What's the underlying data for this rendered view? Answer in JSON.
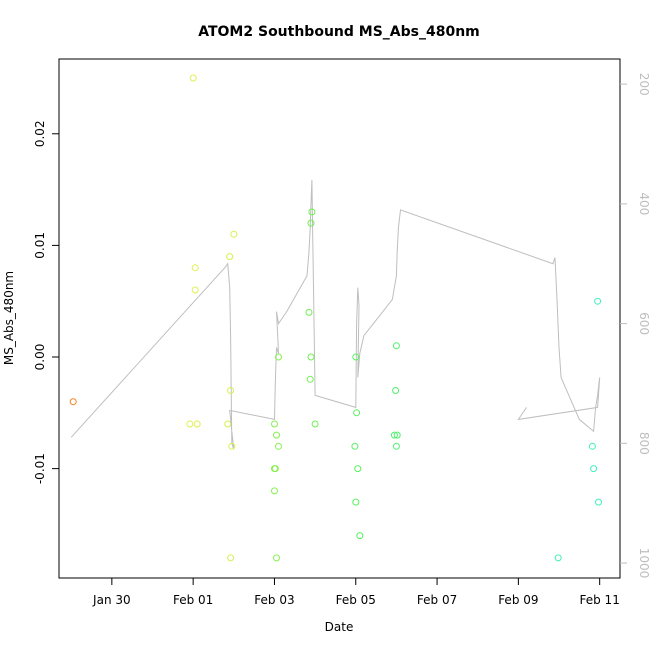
{
  "chart_data": {
    "type": "scatter",
    "title": "ATOM2 Southbound MS_Abs_480nm",
    "xlabel": "Date",
    "ylabel": "MS_Abs_480nm",
    "x_ticks": [
      {
        "label": "Jan 30",
        "value": 1.0
      },
      {
        "label": "Feb 01",
        "value": 3.0
      },
      {
        "label": "Feb 03",
        "value": 5.0
      },
      {
        "label": "Feb 05",
        "value": 7.0
      },
      {
        "label": "Feb 07",
        "value": 9.0
      },
      {
        "label": "Feb 09",
        "value": 11.0
      },
      {
        "label": "Feb 11",
        "value": 13.0
      }
    ],
    "xlim": [
      -0.3,
      13.5
    ],
    "ylim": [
      -0.0198,
      0.0267
    ],
    "y_ticks": [
      {
        "label": "-0.01",
        "value": -0.01
      },
      {
        "label": "0.00",
        "value": 0.0
      },
      {
        "label": "0.01",
        "value": 0.01
      },
      {
        "label": "0.02",
        "value": 0.02
      }
    ],
    "y2_ticks": [
      "200",
      "400",
      "600",
      "800",
      "1000"
    ],
    "y2_tick_values": [
      200,
      400,
      600,
      800,
      1000
    ],
    "y2_range": [
      1025,
      158
    ],
    "y2_color": "#bebebe",
    "point_color_scale": [
      "#ff8c00",
      "#ffff66",
      "#66ff66",
      "#33ffcc"
    ],
    "points": [
      {
        "x": 0.05,
        "y": -0.004,
        "color": "#f08020"
      },
      {
        "x": 2.92,
        "y": -0.006,
        "color": "#e0f050"
      },
      {
        "x": 3.0,
        "y": 0.025,
        "color": "#e0f050"
      },
      {
        "x": 3.05,
        "y": 0.008,
        "color": "#e0f050"
      },
      {
        "x": 3.05,
        "y": 0.006,
        "color": "#e0f050"
      },
      {
        "x": 3.1,
        "y": -0.006,
        "color": "#e0f050"
      },
      {
        "x": 3.85,
        "y": -0.006,
        "color": "#d8f050"
      },
      {
        "x": 3.9,
        "y": 0.009,
        "color": "#d8f050"
      },
      {
        "x": 3.92,
        "y": -0.003,
        "color": "#d8f050"
      },
      {
        "x": 3.95,
        "y": -0.008,
        "color": "#d8f050"
      },
      {
        "x": 4.0,
        "y": 0.011,
        "color": "#d8f050"
      },
      {
        "x": 3.92,
        "y": -0.018,
        "color": "#d8f050"
      },
      {
        "x": 5.0,
        "y": -0.006,
        "color": "#88f050"
      },
      {
        "x": 5.02,
        "y": -0.01,
        "color": "#88f050"
      },
      {
        "x": 5.0,
        "y": -0.01,
        "color": "#88f050"
      },
      {
        "x": 5.0,
        "y": -0.012,
        "color": "#88f050"
      },
      {
        "x": 5.05,
        "y": -0.007,
        "color": "#88f050"
      },
      {
        "x": 5.1,
        "y": -0.008,
        "color": "#88f050"
      },
      {
        "x": 5.1,
        "y": 0.0,
        "color": "#88f050"
      },
      {
        "x": 5.05,
        "y": -0.018,
        "color": "#88f050"
      },
      {
        "x": 5.85,
        "y": 0.004,
        "color": "#70f050"
      },
      {
        "x": 5.9,
        "y": 0.012,
        "color": "#70f050"
      },
      {
        "x": 5.92,
        "y": 0.013,
        "color": "#70f050"
      },
      {
        "x": 5.9,
        "y": 0.0,
        "color": "#70f050"
      },
      {
        "x": 5.88,
        "y": -0.002,
        "color": "#70f050"
      },
      {
        "x": 6.0,
        "y": -0.006,
        "color": "#70f050"
      },
      {
        "x": 7.0,
        "y": 0.0,
        "color": "#58f060"
      },
      {
        "x": 7.02,
        "y": -0.005,
        "color": "#58f060"
      },
      {
        "x": 6.98,
        "y": -0.008,
        "color": "#58f060"
      },
      {
        "x": 7.05,
        "y": -0.01,
        "color": "#58f060"
      },
      {
        "x": 7.0,
        "y": -0.013,
        "color": "#58f060"
      },
      {
        "x": 7.1,
        "y": -0.016,
        "color": "#58f060"
      },
      {
        "x": 8.0,
        "y": 0.001,
        "color": "#50f070"
      },
      {
        "x": 7.98,
        "y": -0.003,
        "color": "#50f070"
      },
      {
        "x": 7.95,
        "y": -0.007,
        "color": "#50f070"
      },
      {
        "x": 8.02,
        "y": -0.007,
        "color": "#50f070"
      },
      {
        "x": 8.0,
        "y": -0.008,
        "color": "#50f070"
      },
      {
        "x": 11.98,
        "y": -0.018,
        "color": "#40f0b0"
      },
      {
        "x": 12.82,
        "y": -0.008,
        "color": "#40f0c0"
      },
      {
        "x": 12.85,
        "y": -0.01,
        "color": "#40f0c0"
      },
      {
        "x": 12.95,
        "y": 0.005,
        "color": "#40f0c0"
      },
      {
        "x": 12.97,
        "y": -0.013,
        "color": "#40f0c0"
      }
    ],
    "depth_line": {
      "name": "",
      "color": "#bebebe",
      "x": [
        0.0,
        3.8,
        3.85,
        3.9,
        3.92,
        3.95,
        4.0,
        3.95,
        3.9,
        5.0,
        5.02,
        5.05,
        5.1,
        5.08,
        5.05,
        5.1,
        5.3,
        5.8,
        5.85,
        5.88,
        5.9,
        5.92,
        6.0,
        7.0,
        7.02,
        7.05,
        7.08,
        7.05,
        7.1,
        7.2,
        7.9,
        7.95,
        8.0,
        8.02,
        8.05,
        8.1,
        11.85,
        11.9,
        11.95,
        12.0,
        12.05,
        12.5,
        12.85,
        12.9,
        12.95,
        12.98,
        13.0,
        12.95,
        11.0,
        11.2
      ],
      "y": [
        790,
        505,
        500,
        540,
        620,
        800,
        810,
        780,
        745,
        760,
        700,
        640,
        650,
        620,
        580,
        600,
        580,
        520,
        480,
        440,
        400,
        360,
        720,
        740,
        600,
        540,
        570,
        690,
        650,
        620,
        560,
        540,
        520,
        480,
        440,
        410,
        500,
        490,
        560,
        640,
        690,
        760,
        780,
        740,
        720,
        700,
        690,
        740,
        760,
        740
      ]
    }
  }
}
